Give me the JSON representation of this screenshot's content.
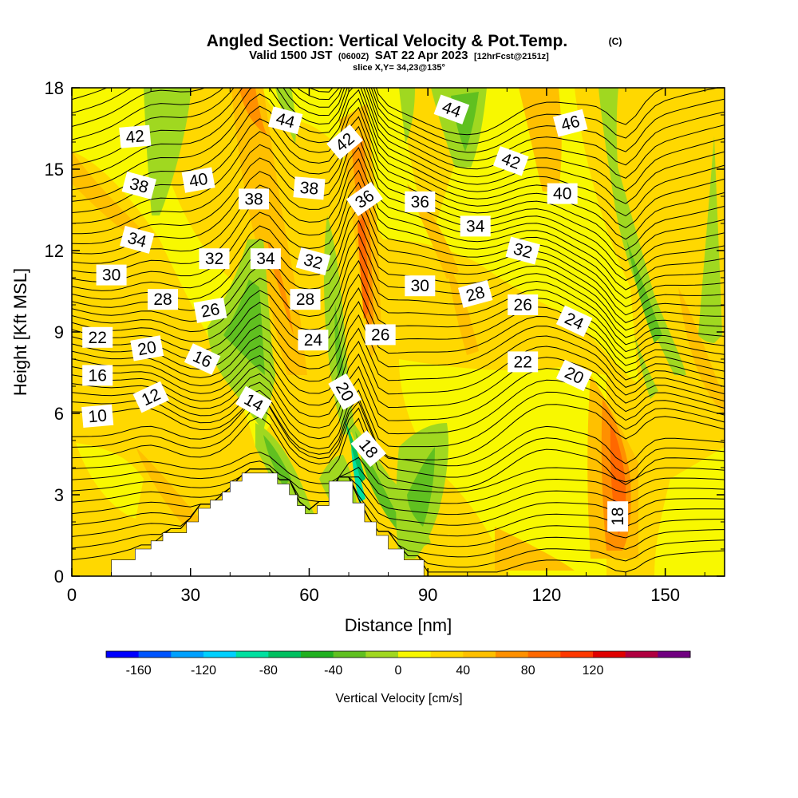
{
  "title": "Angled Section: Vertical Velocity & Pot.Temp.",
  "title_units": "(C)",
  "subtitle_parts": [
    "Valid 1500 JST",
    "(0600Z)",
    "SAT 22 Apr 2023",
    "[12hrFcst@2151z]"
  ],
  "slice_label": "slice X,Y= 34,23@135°",
  "chart_data": {
    "type": "heatmap",
    "xlabel": "Distance [nm]",
    "ylabel": "Height [Kft MSL]",
    "xlim": [
      0,
      165
    ],
    "ylim": [
      0,
      18
    ],
    "xticks": [
      "0",
      "30",
      "60",
      "90",
      "120",
      "150"
    ],
    "yticks": [
      "0",
      "3",
      "6",
      "9",
      "12",
      "15",
      "18"
    ],
    "colorbar": {
      "label": "Vertical Velocity [cm/s]",
      "ticks": [
        "-160",
        "-120",
        "-80",
        "-40",
        "0",
        "40",
        "80",
        "120"
      ],
      "colors": [
        "#0000ff",
        "#0055ff",
        "#00a0ff",
        "#00d0ff",
        "#00e0a0",
        "#00c060",
        "#20b020",
        "#60c020",
        "#a0d820",
        "#f8f800",
        "#ffd800",
        "#ffc000",
        "#ff9000",
        "#ff6800",
        "#ff3800",
        "#e00000",
        "#b00040",
        "#700080"
      ]
    },
    "terrain_profile": [
      [
        0,
        0
      ],
      [
        10,
        0
      ],
      [
        10,
        0.6
      ],
      [
        16,
        0.6
      ],
      [
        16,
        1
      ],
      [
        20,
        1
      ],
      [
        20,
        1.3
      ],
      [
        23,
        1.3
      ],
      [
        23,
        1.6
      ],
      [
        29,
        1.6
      ],
      [
        29,
        2
      ],
      [
        32,
        2
      ],
      [
        32,
        2.5
      ],
      [
        35,
        2.5
      ],
      [
        35,
        2.8
      ],
      [
        38,
        2.8
      ],
      [
        38,
        3.1
      ],
      [
        40,
        3.1
      ],
      [
        40,
        3.5
      ],
      [
        43,
        3.5
      ],
      [
        43,
        3.8
      ],
      [
        52,
        3.8
      ],
      [
        52,
        3.4
      ],
      [
        55,
        3.4
      ],
      [
        55,
        3
      ],
      [
        57,
        3
      ],
      [
        57,
        2.6
      ],
      [
        59,
        2.6
      ],
      [
        59,
        2.3
      ],
      [
        62,
        2.3
      ],
      [
        62,
        2.6
      ],
      [
        65,
        2.6
      ],
      [
        65,
        3.5
      ],
      [
        71,
        3.5
      ],
      [
        71,
        2.7
      ],
      [
        74,
        2.7
      ],
      [
        74,
        2
      ],
      [
        77,
        2
      ],
      [
        77,
        1.5
      ],
      [
        80,
        1.5
      ],
      [
        80,
        1
      ],
      [
        84,
        1
      ],
      [
        84,
        0.6
      ],
      [
        89,
        0.6
      ],
      [
        89,
        0
      ],
      [
        165,
        0
      ]
    ],
    "theta_contour_labels": [
      {
        "v": "42",
        "x": 16,
        "y": 16.2,
        "r": -5
      },
      {
        "v": "38",
        "x": 17,
        "y": 14.4,
        "r": 15
      },
      {
        "v": "34",
        "x": 16.5,
        "y": 12.4,
        "r": 15
      },
      {
        "v": "30",
        "x": 10,
        "y": 11.1,
        "r": 0
      },
      {
        "v": "28",
        "x": 23,
        "y": 10.2,
        "r": 0
      },
      {
        "v": "26",
        "x": 35,
        "y": 9.8,
        "r": -10
      },
      {
        "v": "22",
        "x": 6.5,
        "y": 8.8,
        "r": 0
      },
      {
        "v": "20",
        "x": 19,
        "y": 8.4,
        "r": -10
      },
      {
        "v": "16",
        "x": 6.5,
        "y": 7.4,
        "r": 0
      },
      {
        "v": "16",
        "x": 33,
        "y": 8.0,
        "r": 25
      },
      {
        "v": "12",
        "x": 20,
        "y": 6.6,
        "r": -25
      },
      {
        "v": "10",
        "x": 6.5,
        "y": 5.9,
        "r": -5
      },
      {
        "v": "14",
        "x": 46,
        "y": 6.4,
        "r": 30
      },
      {
        "v": "40",
        "x": 32,
        "y": 14.6,
        "r": -10
      },
      {
        "v": "44",
        "x": 54,
        "y": 16.8,
        "r": 15
      },
      {
        "v": "38",
        "x": 46,
        "y": 13.9,
        "r": 0
      },
      {
        "v": "38",
        "x": 60,
        "y": 14.3,
        "r": 5
      },
      {
        "v": "32",
        "x": 36,
        "y": 11.7,
        "r": 0
      },
      {
        "v": "34",
        "x": 49,
        "y": 11.7,
        "r": 0
      },
      {
        "v": "32",
        "x": 61,
        "y": 11.6,
        "r": 15
      },
      {
        "v": "28",
        "x": 59,
        "y": 10.2,
        "r": 0
      },
      {
        "v": "24",
        "x": 61,
        "y": 8.7,
        "r": 0
      },
      {
        "v": "42",
        "x": 69,
        "y": 16.0,
        "r": -40
      },
      {
        "v": "36",
        "x": 74,
        "y": 13.9,
        "r": -35
      },
      {
        "v": "20",
        "x": 69,
        "y": 6.8,
        "r": 60
      },
      {
        "v": "18",
        "x": 75,
        "y": 4.7,
        "r": 50
      },
      {
        "v": "26",
        "x": 78,
        "y": 8.9,
        "r": 0
      },
      {
        "v": "36",
        "x": 88,
        "y": 13.8,
        "r": 0
      },
      {
        "v": "30",
        "x": 88,
        "y": 10.7,
        "r": 0
      },
      {
        "v": "44",
        "x": 96,
        "y": 17.2,
        "r": 20
      },
      {
        "v": "34",
        "x": 102,
        "y": 12.9,
        "r": 0
      },
      {
        "v": "28",
        "x": 102,
        "y": 10.4,
        "r": -15
      },
      {
        "v": "42",
        "x": 111,
        "y": 15.3,
        "r": 20
      },
      {
        "v": "32",
        "x": 114,
        "y": 12.0,
        "r": 15
      },
      {
        "v": "26",
        "x": 114,
        "y": 10.0,
        "r": 0
      },
      {
        "v": "22",
        "x": 114,
        "y": 7.9,
        "r": 0
      },
      {
        "v": "46",
        "x": 126,
        "y": 16.7,
        "r": -15
      },
      {
        "v": "40",
        "x": 124,
        "y": 14.1,
        "r": 0
      },
      {
        "v": "24",
        "x": 127,
        "y": 9.4,
        "r": 25
      },
      {
        "v": "20",
        "x": 127,
        "y": 7.4,
        "r": 25
      },
      {
        "v": "18",
        "x": 138,
        "y": 2.2,
        "r": -90
      }
    ]
  }
}
